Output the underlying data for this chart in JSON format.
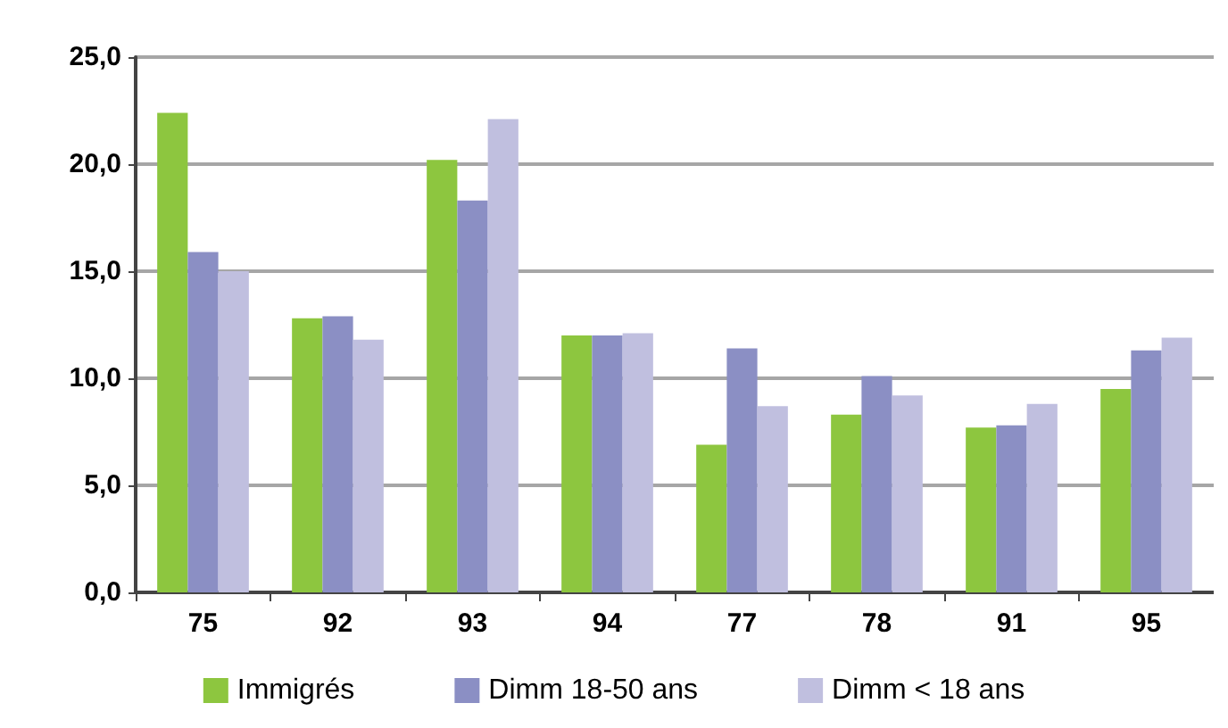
{
  "chart_data": {
    "type": "bar",
    "categories": [
      "75",
      "92",
      "93",
      "94",
      "77",
      "78",
      "91",
      "95"
    ],
    "series": [
      {
        "name": "Immigrés",
        "color": "#8dc63f",
        "values": [
          22.4,
          12.8,
          20.2,
          12.0,
          6.9,
          8.3,
          7.7,
          9.5
        ]
      },
      {
        "name": "Dimm 18-50 ans",
        "color": "#8b8fc4",
        "values": [
          15.9,
          12.9,
          18.3,
          12.0,
          11.4,
          10.1,
          7.8,
          11.3
        ]
      },
      {
        "name": "Dimm < 18 ans",
        "color": "#c0bfdf",
        "values": [
          15.0,
          11.8,
          22.1,
          12.1,
          8.7,
          9.2,
          8.8,
          11.9
        ]
      }
    ],
    "ylim": [
      0,
      25
    ],
    "yticks": [
      {
        "value": 0,
        "label": "0,0"
      },
      {
        "value": 5,
        "label": "5,0"
      },
      {
        "value": 10,
        "label": "10,0"
      },
      {
        "value": 15,
        "label": "15,0"
      },
      {
        "value": 20,
        "label": "20,0"
      },
      {
        "value": 25,
        "label": "25,0"
      }
    ],
    "grid": "y",
    "legend": "bottom"
  }
}
